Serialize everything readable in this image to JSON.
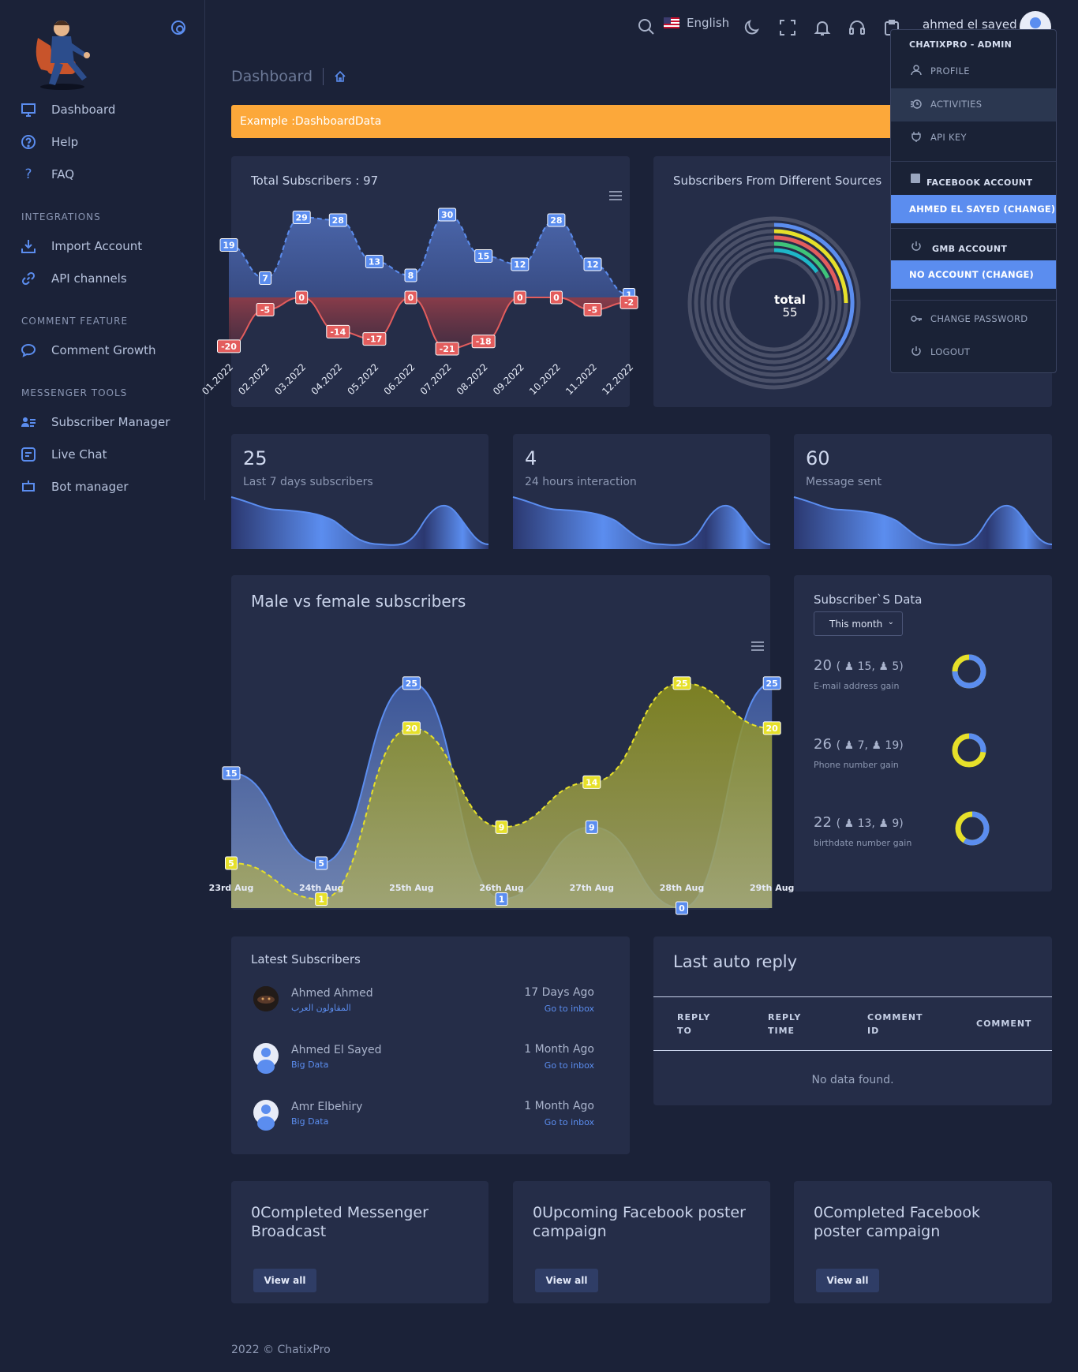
{
  "sidebar": {
    "items": [
      {
        "label": "Dashboard",
        "icon": "monitor-icon"
      },
      {
        "label": "Help",
        "icon": "help-circle-icon"
      },
      {
        "label": "FAQ",
        "icon": "question-icon"
      },
      {
        "label": "Import Account",
        "icon": "download-icon"
      },
      {
        "label": "API channels",
        "icon": "link-icon"
      },
      {
        "label": "Comment Growth",
        "icon": "chat-bubble-icon"
      },
      {
        "label": "Subscriber Manager",
        "icon": "users-list-icon"
      },
      {
        "label": "Live Chat",
        "icon": "chat-square-icon"
      },
      {
        "label": "Bot manager",
        "icon": "bot-icon"
      }
    ],
    "sections": [
      "INTEGRATIONS",
      "COMMENT FEATURE",
      "MESSENGER TOOLS"
    ]
  },
  "topbar": {
    "language": "English",
    "username": "ahmed el sayed"
  },
  "page": {
    "title": "Dashboard",
    "alert": "Example :DashboardData"
  },
  "colors": {
    "accent": "#5b8def",
    "positive": "#4e7fd9",
    "negative": "#e35d5d",
    "female": "#e6e02a",
    "alert": "#fca83a"
  },
  "total_subscribers": {
    "title": "Total Subscribers : 97",
    "chart_data": {
      "type": "area",
      "x": [
        "01.2022",
        "02.2022",
        "03.2022",
        "04.2022",
        "05.2022",
        "06.2022",
        "07.2022",
        "08.2022",
        "09.2022",
        "10.2022",
        "11.2022",
        "12.2022"
      ],
      "series": [
        {
          "values": [
            19,
            7,
            29,
            28,
            13,
            8,
            30,
            15,
            12,
            28,
            12,
            1
          ]
        },
        {
          "values": [
            -20,
            -5,
            0,
            -14,
            -17,
            0,
            -21,
            -18,
            0,
            0,
            -5,
            -2
          ]
        }
      ]
    }
  },
  "sources": {
    "title": "Subscribers From Different Sources",
    "total_label": "total",
    "total_value": "55",
    "chart_data": {
      "type": "pie",
      "ring_fractions": [
        0.25,
        0.22,
        0.18,
        0.15,
        0.38
      ]
    }
  },
  "stats": [
    {
      "value": "25",
      "label": "Last 7 days subscribers"
    },
    {
      "value": "4",
      "label": "24 hours interaction"
    },
    {
      "value": "60",
      "label": "Message sent"
    }
  ],
  "gender": {
    "title": "Male vs female subscribers",
    "chart_data": {
      "type": "area",
      "x": [
        "23rd Aug",
        "24th Aug",
        "25th Aug",
        "26th Aug",
        "27th Aug",
        "28th Aug",
        "29th Aug"
      ],
      "series": [
        {
          "values": [
            15,
            5,
            25,
            1,
            9,
            0,
            25
          ]
        },
        {
          "values": [
            5,
            1,
            20,
            9,
            14,
            25,
            20
          ]
        }
      ]
    }
  },
  "subscriber_data": {
    "title": "Subscriber`S Data",
    "filter": "This month",
    "rows": [
      {
        "total": "20",
        "male": "15",
        "female": "5",
        "label": "E-mail address gain",
        "male_fraction": 0.75
      },
      {
        "total": "26",
        "male": "7",
        "female": "19",
        "label": "Phone number gain",
        "male_fraction": 0.27
      },
      {
        "total": "22",
        "male": "13",
        "female": "9",
        "label": "birthdate number gain",
        "male_fraction": 0.59
      }
    ]
  },
  "latest": {
    "title": "Latest Subscribers",
    "rows": [
      {
        "name": "Ahmed Ahmed",
        "page": "المقاولون العرب",
        "time": "17 Days Ago",
        "link": "Go to inbox"
      },
      {
        "name": "Ahmed El Sayed",
        "page": "Big Data",
        "time": "1 Month Ago",
        "link": "Go to inbox"
      },
      {
        "name": "Amr Elbehiry",
        "page": "Big Data",
        "time": "1 Month Ago",
        "link": "Go to inbox"
      }
    ]
  },
  "auto_reply": {
    "title": "Last auto reply",
    "columns": [
      "REPLY\nTO",
      "REPLY\nTIME",
      "COMMENT\nID",
      "COMMENT"
    ],
    "empty": "No data found."
  },
  "ctas": [
    {
      "title": "0Completed Messenger Broadcast",
      "button": "View all"
    },
    {
      "title": "0Upcoming Facebook poster campaign",
      "button": "View all"
    },
    {
      "title": "0Completed Facebook poster campaign",
      "button": "View all"
    }
  ],
  "dropdown": {
    "header": "CHATIXPRO - ADMIN",
    "profile": "PROFILE",
    "activities": "ACTIVITIES",
    "api_key": "API KEY",
    "fb_header": "FACEBOOK ACCOUNT",
    "fb_account": "AHMED EL SAYED (CHANGE)",
    "gmb_header": "GMB ACCOUNT",
    "gmb_account": "NO ACCOUNT (CHANGE)",
    "change_password": "CHANGE PASSWORD",
    "logout": "LOGOUT"
  },
  "footer": "2022 © ChatixPro"
}
